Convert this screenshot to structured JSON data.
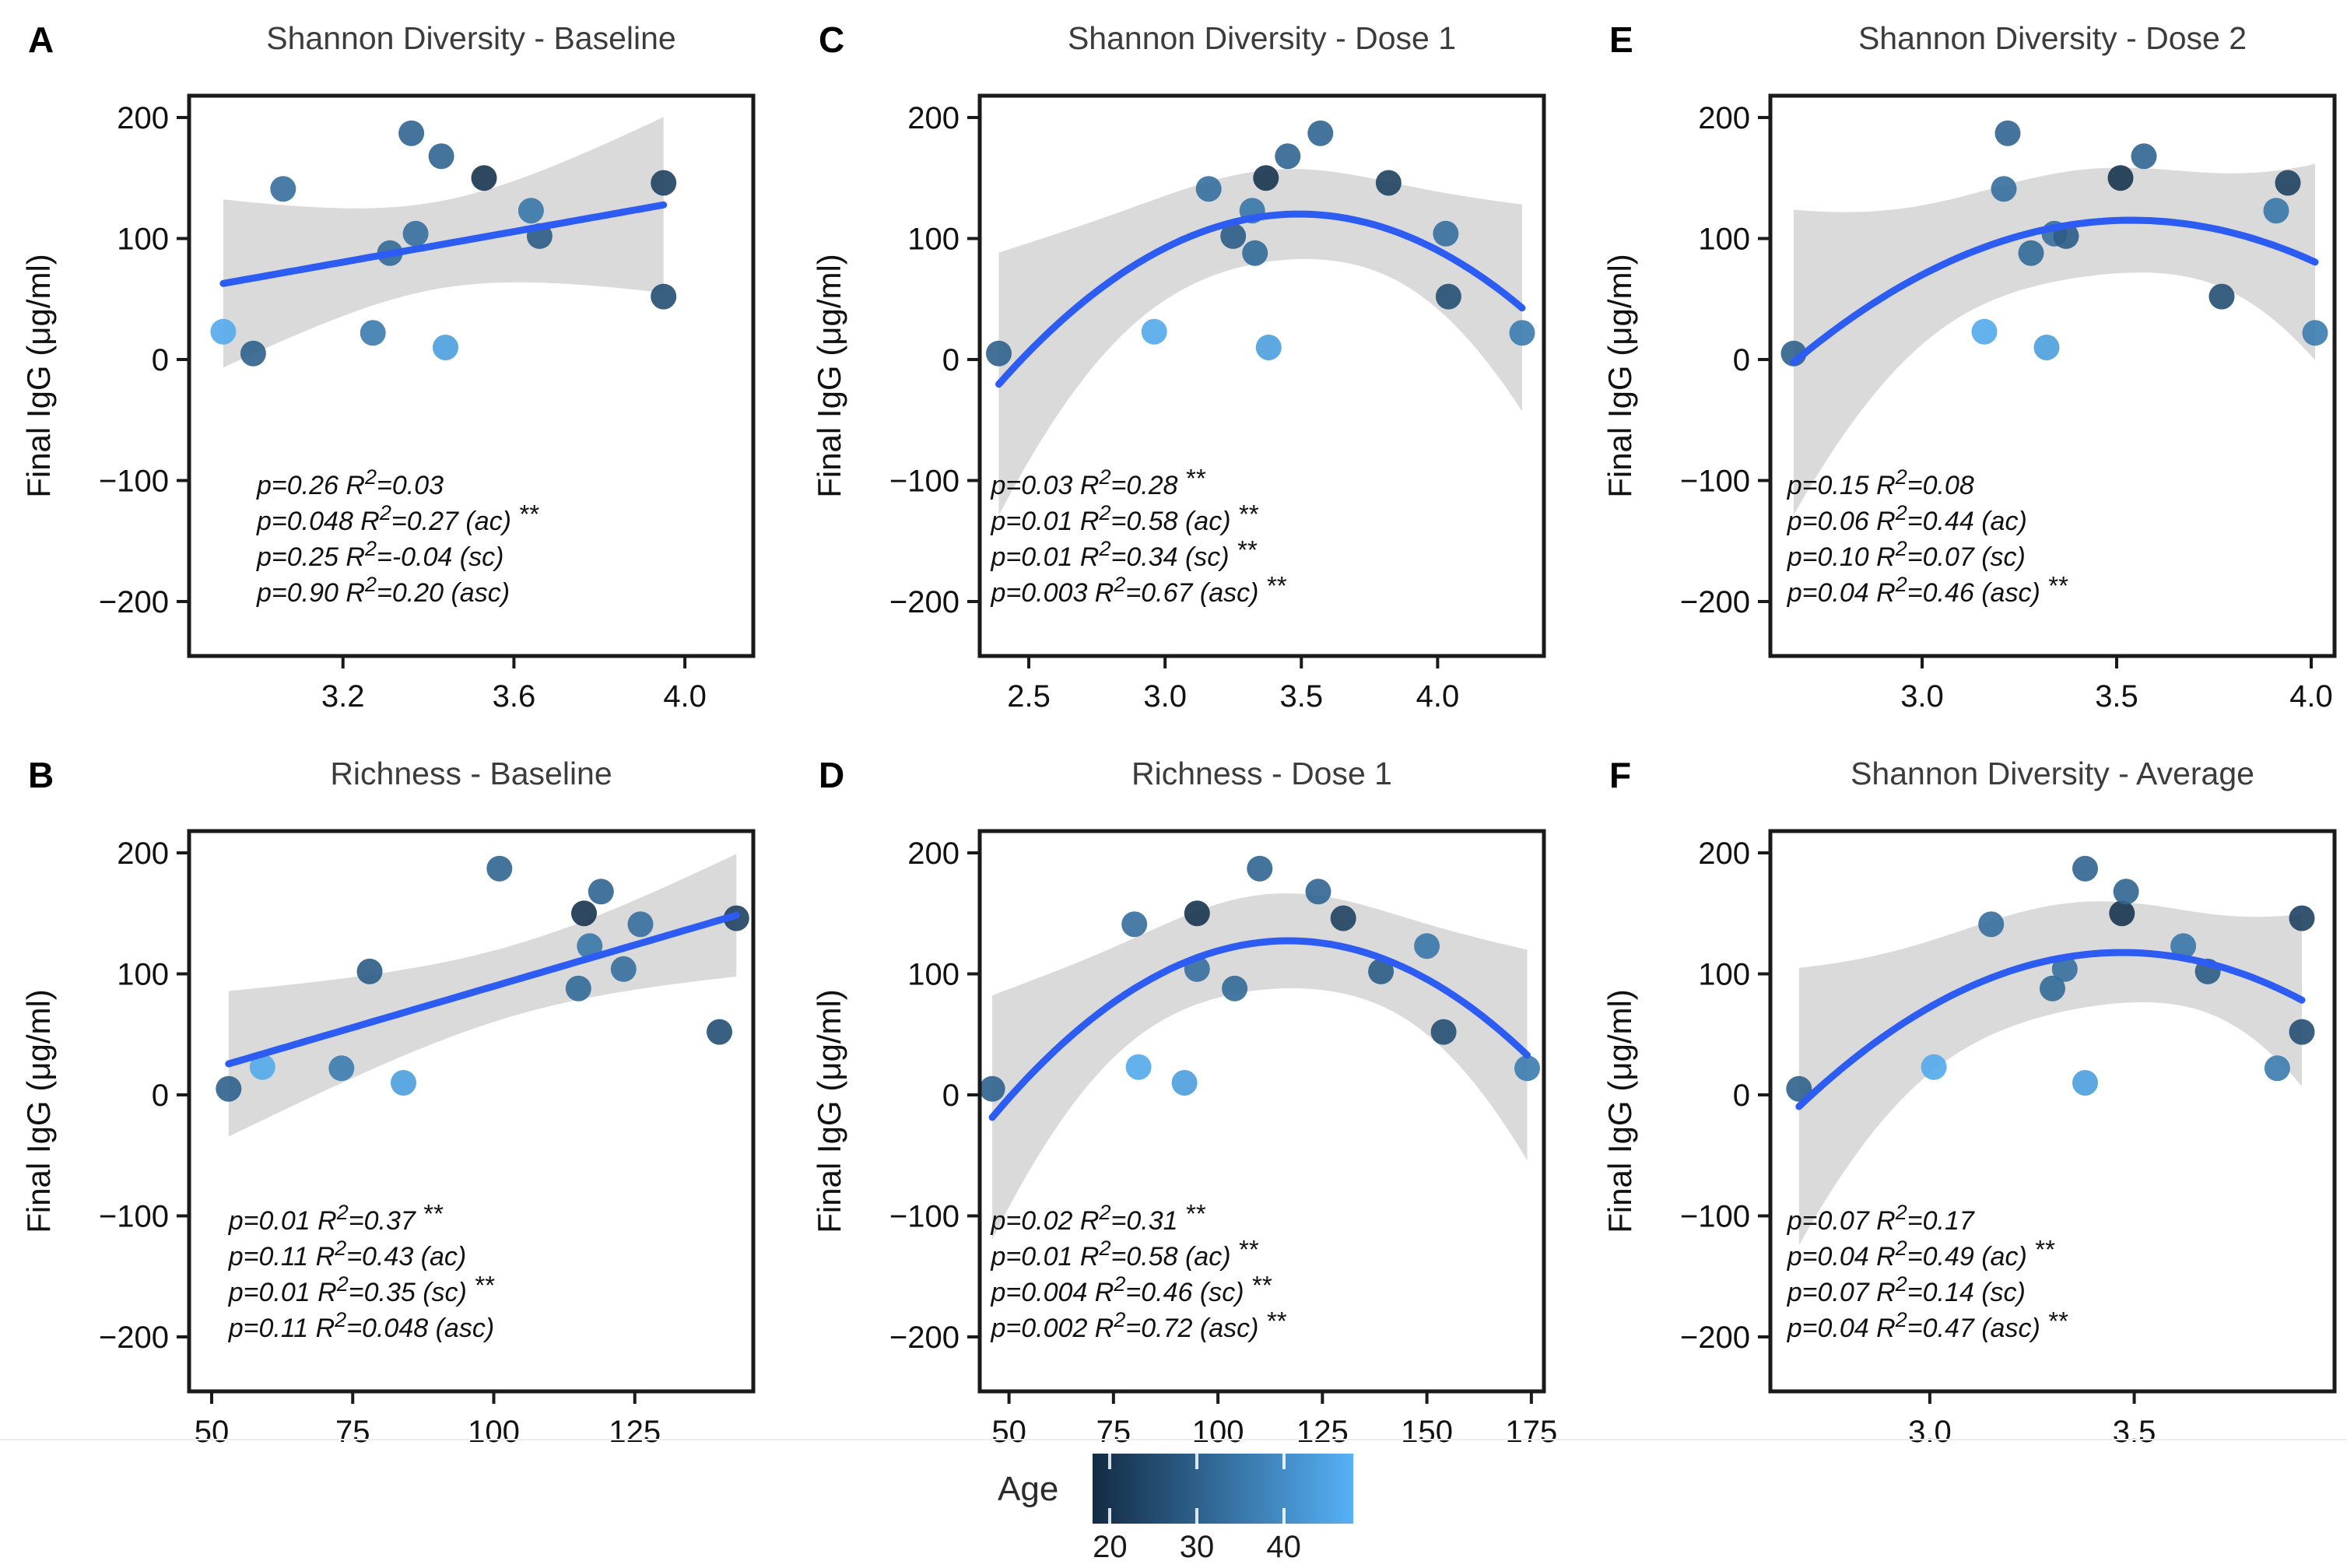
{
  "figure": {
    "y_axis_label": "Final IgG (μg/ml)",
    "line_color": "#2C5CF2",
    "band_color": "#d3d3d3",
    "title_color": "#3c3c3c",
    "text_color": "#111111"
  },
  "legend": {
    "label": "Age",
    "domain": [
      18,
      48
    ],
    "ticks": [
      20,
      30,
      40
    ],
    "color_low": "#132B43",
    "color_high": "#56B1F7"
  },
  "chart_data": [
    {
      "id": "A",
      "title": "Shannon Diversity - Baseline",
      "type": "scatter",
      "fit": "linear",
      "xlabel": "",
      "ylabel": "Final IgG (μg/ml)",
      "xlim": [
        2.84,
        4.16
      ],
      "xticks": [
        3.2,
        3.6,
        4.0
      ],
      "xtick_decimals": 1,
      "ylim": [
        -245,
        218
      ],
      "yticks": [
        200,
        100,
        0,
        -100,
        -200
      ],
      "grid": false,
      "stats_x_frac": 0.12,
      "stats": [
        "p=0.26 R²=0.03",
        "p=0.048 R²=0.27 (ac) **",
        "p=0.25 R²=-0.04 (sc)",
        "p=0.90 R²=0.20 (asc)"
      ],
      "points": [
        {
          "x": 2.92,
          "y": 23,
          "age": 46
        },
        {
          "x": 2.99,
          "y": 5,
          "age": 30
        },
        {
          "x": 3.06,
          "y": 141,
          "age": 33
        },
        {
          "x": 3.27,
          "y": 22,
          "age": 36
        },
        {
          "x": 3.31,
          "y": 88,
          "age": 32
        },
        {
          "x": 3.36,
          "y": 187,
          "age": 31
        },
        {
          "x": 3.37,
          "y": 104,
          "age": 33
        },
        {
          "x": 3.43,
          "y": 168,
          "age": 31
        },
        {
          "x": 3.44,
          "y": 10,
          "age": 44
        },
        {
          "x": 3.53,
          "y": 150,
          "age": 20
        },
        {
          "x": 3.64,
          "y": 123,
          "age": 35
        },
        {
          "x": 3.66,
          "y": 102,
          "age": 29
        },
        {
          "x": 3.95,
          "y": 146,
          "age": 23
        },
        {
          "x": 3.95,
          "y": 52,
          "age": 26
        }
      ]
    },
    {
      "id": "B",
      "title": "Richness - Baseline",
      "type": "scatter",
      "fit": "linear",
      "xlabel": "",
      "ylabel": "Final IgG (μg/ml)",
      "xlim": [
        46,
        146
      ],
      "xticks": [
        50,
        75,
        100,
        125
      ],
      "xtick_decimals": 0,
      "ylim": [
        -245,
        218
      ],
      "yticks": [
        200,
        100,
        0,
        -100,
        -200
      ],
      "grid": false,
      "stats_x_frac": 0.07,
      "stats": [
        "p=0.01 R²=0.37 **",
        "p=0.11 R²=0.43 (ac)",
        "p=0.01 R²=0.35 (sc) **",
        "p=0.11 R²=0.048 (asc)"
      ],
      "points": [
        {
          "x": 53,
          "y": 5,
          "age": 30
        },
        {
          "x": 59,
          "y": 23,
          "age": 46
        },
        {
          "x": 73,
          "y": 22,
          "age": 36
        },
        {
          "x": 78,
          "y": 102,
          "age": 29
        },
        {
          "x": 84,
          "y": 10,
          "age": 44
        },
        {
          "x": 101,
          "y": 187,
          "age": 31
        },
        {
          "x": 115,
          "y": 88,
          "age": 32
        },
        {
          "x": 116,
          "y": 150,
          "age": 20
        },
        {
          "x": 117,
          "y": 123,
          "age": 35
        },
        {
          "x": 119,
          "y": 168,
          "age": 31
        },
        {
          "x": 123,
          "y": 104,
          "age": 33
        },
        {
          "x": 126,
          "y": 141,
          "age": 33
        },
        {
          "x": 140,
          "y": 52,
          "age": 26
        },
        {
          "x": 143,
          "y": 146,
          "age": 23
        }
      ]
    },
    {
      "id": "C",
      "title": "Shannon Diversity - Dose 1",
      "type": "scatter",
      "fit": "quadratic",
      "xlabel": "",
      "ylabel": "Final IgG (μg/ml)",
      "xlim": [
        2.32,
        4.39
      ],
      "xticks": [
        2.5,
        3.0,
        3.5,
        4.0
      ],
      "xtick_decimals": 1,
      "ylim": [
        -245,
        218
      ],
      "yticks": [
        200,
        100,
        0,
        -100,
        -200
      ],
      "grid": false,
      "stats_x_frac": 0.02,
      "stats": [
        "p=0.03 R²=0.28 **",
        "p=0.01 R²=0.58 (ac) **",
        "p=0.01 R²=0.34 (sc) **",
        "p=0.003 R²=0.67 (asc) **"
      ],
      "points": [
        {
          "x": 2.39,
          "y": 5,
          "age": 30
        },
        {
          "x": 2.96,
          "y": 23,
          "age": 46
        },
        {
          "x": 3.16,
          "y": 141,
          "age": 33
        },
        {
          "x": 3.25,
          "y": 102,
          "age": 29
        },
        {
          "x": 3.32,
          "y": 123,
          "age": 35
        },
        {
          "x": 3.33,
          "y": 88,
          "age": 32
        },
        {
          "x": 3.37,
          "y": 150,
          "age": 20
        },
        {
          "x": 3.38,
          "y": 10,
          "age": 44
        },
        {
          "x": 3.45,
          "y": 168,
          "age": 31
        },
        {
          "x": 3.57,
          "y": 187,
          "age": 31
        },
        {
          "x": 3.82,
          "y": 146,
          "age": 23
        },
        {
          "x": 4.03,
          "y": 104,
          "age": 33
        },
        {
          "x": 4.04,
          "y": 52,
          "age": 26
        },
        {
          "x": 4.31,
          "y": 22,
          "age": 36
        }
      ]
    },
    {
      "id": "D",
      "title": "Richness - Dose 1",
      "type": "scatter",
      "fit": "quadratic",
      "xlabel": "",
      "ylabel": "Final IgG (μg/ml)",
      "xlim": [
        43,
        178
      ],
      "xticks": [
        50,
        75,
        100,
        125,
        150,
        175
      ],
      "xtick_decimals": 0,
      "ylim": [
        -245,
        218
      ],
      "yticks": [
        200,
        100,
        0,
        -100,
        -200
      ],
      "grid": false,
      "stats_x_frac": 0.02,
      "stats": [
        "p=0.02 R²=0.31 **",
        "p=0.01 R²=0.58 (ac) **",
        "p=0.004 R²=0.46 (sc) **",
        "p=0.002 R²=0.72 (asc) **"
      ],
      "points": [
        {
          "x": 46,
          "y": 5,
          "age": 30
        },
        {
          "x": 80,
          "y": 141,
          "age": 33
        },
        {
          "x": 81,
          "y": 23,
          "age": 46
        },
        {
          "x": 92,
          "y": 10,
          "age": 44
        },
        {
          "x": 95,
          "y": 150,
          "age": 20
        },
        {
          "x": 95,
          "y": 104,
          "age": 33
        },
        {
          "x": 104,
          "y": 88,
          "age": 32
        },
        {
          "x": 110,
          "y": 187,
          "age": 31
        },
        {
          "x": 124,
          "y": 168,
          "age": 31
        },
        {
          "x": 130,
          "y": 146,
          "age": 23
        },
        {
          "x": 139,
          "y": 102,
          "age": 29
        },
        {
          "x": 150,
          "y": 123,
          "age": 35
        },
        {
          "x": 154,
          "y": 52,
          "age": 26
        },
        {
          "x": 174,
          "y": 22,
          "age": 36
        }
      ]
    },
    {
      "id": "E",
      "title": "Shannon Diversity - Dose 2",
      "type": "scatter",
      "fit": "quadratic",
      "xlabel": "",
      "ylabel": "Final IgG (μg/ml)",
      "xlim": [
        2.61,
        4.06
      ],
      "xticks": [
        3.0,
        3.5,
        4.0
      ],
      "xtick_decimals": 1,
      "ylim": [
        -245,
        218
      ],
      "yticks": [
        200,
        100,
        0,
        -100,
        -200
      ],
      "grid": false,
      "stats_x_frac": 0.03,
      "stats": [
        "p=0.15 R²=0.08",
        "p=0.06 R²=0.44 (ac)",
        "p=0.10 R²=0.07 (sc)",
        "p=0.04 R²=0.46 (asc) **"
      ],
      "points": [
        {
          "x": 2.67,
          "y": 5,
          "age": 30
        },
        {
          "x": 3.16,
          "y": 23,
          "age": 46
        },
        {
          "x": 3.21,
          "y": 141,
          "age": 33
        },
        {
          "x": 3.22,
          "y": 187,
          "age": 31
        },
        {
          "x": 3.28,
          "y": 88,
          "age": 32
        },
        {
          "x": 3.32,
          "y": 10,
          "age": 44
        },
        {
          "x": 3.34,
          "y": 104,
          "age": 33
        },
        {
          "x": 3.37,
          "y": 102,
          "age": 29
        },
        {
          "x": 3.51,
          "y": 150,
          "age": 20
        },
        {
          "x": 3.57,
          "y": 168,
          "age": 31
        },
        {
          "x": 3.77,
          "y": 52,
          "age": 26
        },
        {
          "x": 3.91,
          "y": 123,
          "age": 35
        },
        {
          "x": 3.94,
          "y": 146,
          "age": 23
        },
        {
          "x": 4.01,
          "y": 22,
          "age": 36
        }
      ]
    },
    {
      "id": "F",
      "title": "Shannon Diversity - Average",
      "type": "scatter",
      "fit": "quadratic",
      "xlabel": "",
      "ylabel": "Final IgG (μg/ml)",
      "xlim": [
        2.61,
        3.99
      ],
      "xticks": [
        3.0,
        3.5
      ],
      "xtick_decimals": 1,
      "ylim": [
        -245,
        218
      ],
      "yticks": [
        200,
        100,
        0,
        -100,
        -200
      ],
      "grid": false,
      "stats_x_frac": 0.03,
      "stats": [
        "p=0.07 R²=0.17",
        "p=0.04 R²=0.49 (ac) **",
        "p=0.07 R²=0.14 (sc)",
        "p=0.04 R²=0.47 (asc) **"
      ],
      "points": [
        {
          "x": 2.68,
          "y": 5,
          "age": 30
        },
        {
          "x": 3.01,
          "y": 23,
          "age": 46
        },
        {
          "x": 3.15,
          "y": 141,
          "age": 33
        },
        {
          "x": 3.3,
          "y": 88,
          "age": 32
        },
        {
          "x": 3.33,
          "y": 104,
          "age": 33
        },
        {
          "x": 3.38,
          "y": 187,
          "age": 31
        },
        {
          "x": 3.38,
          "y": 10,
          "age": 44
        },
        {
          "x": 3.47,
          "y": 150,
          "age": 20
        },
        {
          "x": 3.48,
          "y": 168,
          "age": 31
        },
        {
          "x": 3.62,
          "y": 123,
          "age": 35
        },
        {
          "x": 3.68,
          "y": 102,
          "age": 29
        },
        {
          "x": 3.85,
          "y": 22,
          "age": 36
        },
        {
          "x": 3.91,
          "y": 146,
          "age": 23
        },
        {
          "x": 3.91,
          "y": 52,
          "age": 26
        }
      ]
    }
  ]
}
